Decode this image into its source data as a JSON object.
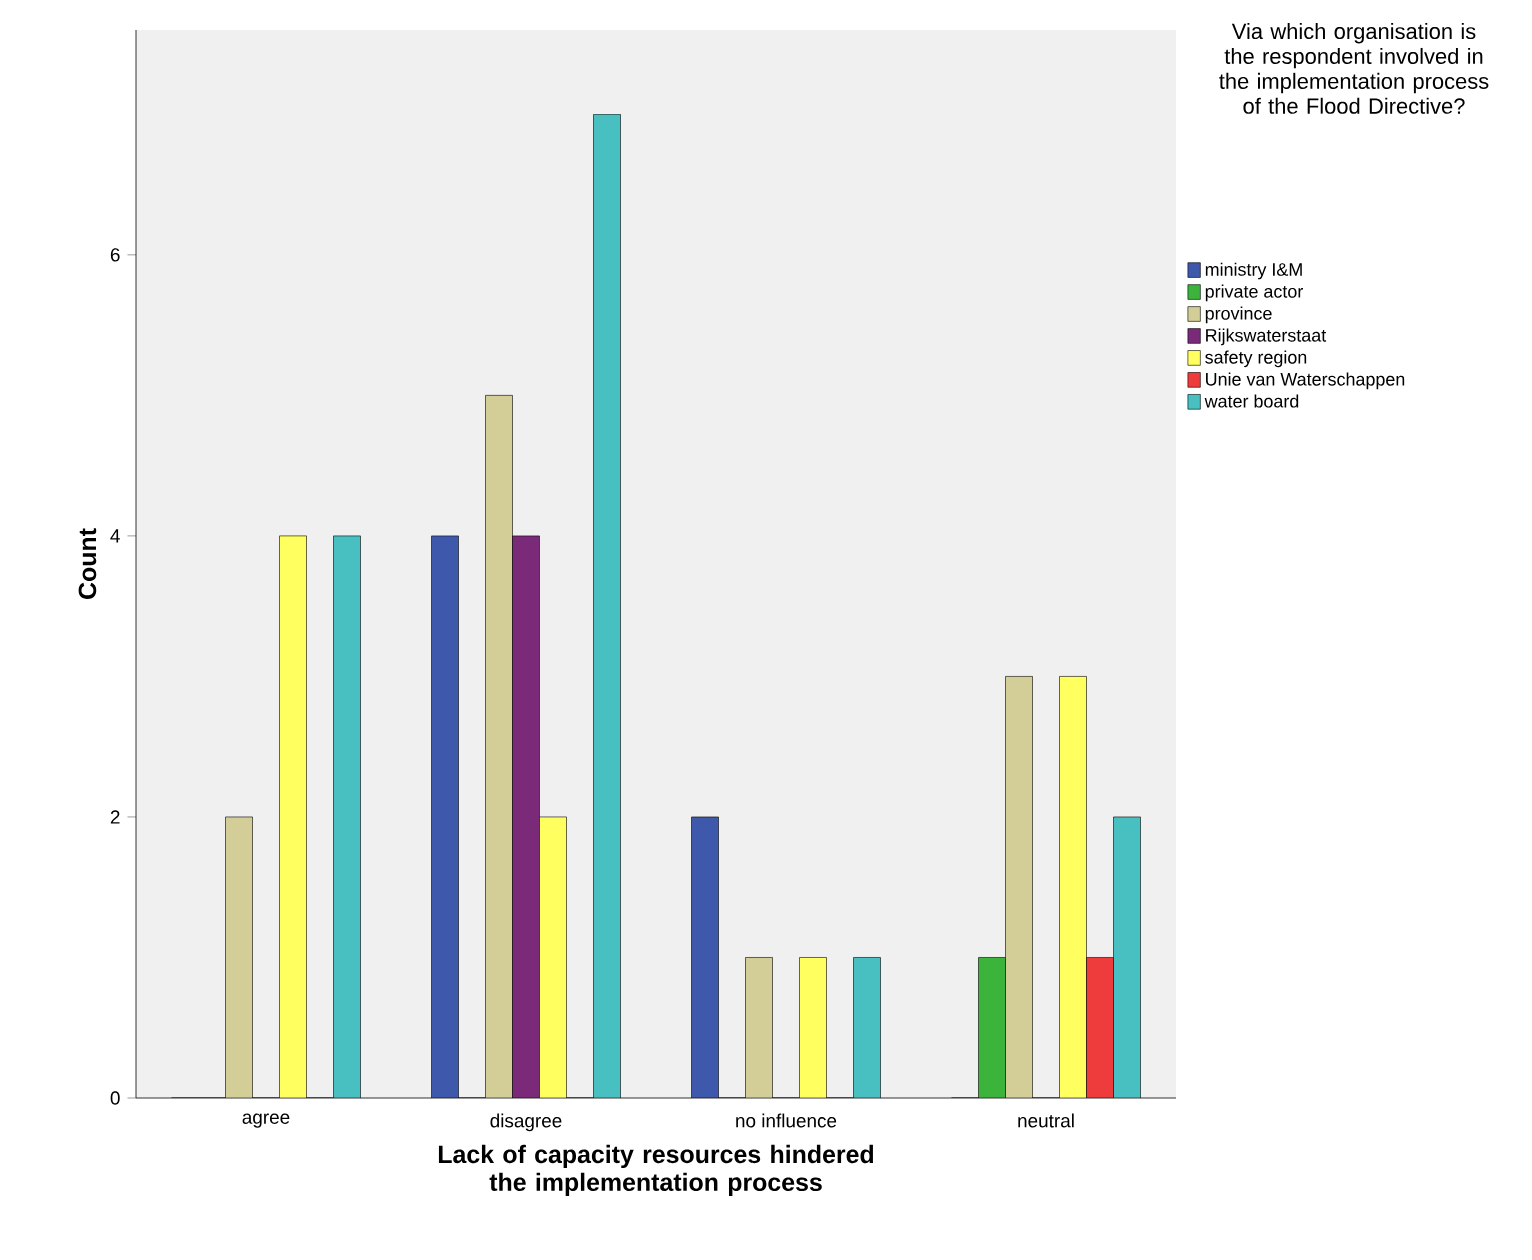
{
  "chart_data": {
    "type": "bar",
    "xlabel": "Lack of capacity resources hindered the implementation process",
    "ylabel": "Count",
    "legend_title": "Via which organisation is the respondent involved in the implementation process of the Flood Directive?",
    "categories": [
      "agree",
      "disagree",
      "no influence",
      "neutral"
    ],
    "series": [
      {
        "name": "ministry I&M",
        "color": "#3e58ac",
        "values": [
          0,
          4,
          2,
          0
        ]
      },
      {
        "name": "private actor",
        "color": "#3cb43c",
        "values": [
          0,
          0,
          0,
          1
        ]
      },
      {
        "name": "province",
        "color": "#d3ce97",
        "values": [
          2,
          5,
          1,
          3
        ]
      },
      {
        "name": "Rijkswaterstaat",
        "color": "#7a2a79",
        "values": [
          0,
          4,
          0,
          0
        ]
      },
      {
        "name": "safety region",
        "color": "#ffff60",
        "values": [
          4,
          2,
          1,
          3
        ]
      },
      {
        "name": "Unie van Waterschappen",
        "color": "#ee3b3b",
        "values": [
          0,
          0,
          0,
          1
        ]
      },
      {
        "name": "water board",
        "color": "#48c0c2",
        "values": [
          4,
          7,
          1,
          2
        ]
      }
    ],
    "ylim": [
      0,
      7.6
    ],
    "yticks": [
      0,
      2,
      4,
      6
    ],
    "legend": "right"
  }
}
